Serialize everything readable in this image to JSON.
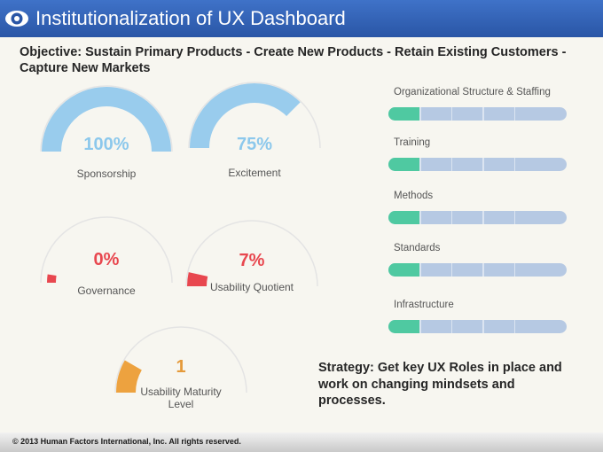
{
  "header": {
    "title": "Institutionalization of UX Dashboard",
    "logo_icon": "eye-icon"
  },
  "objective": "Objective: Sustain Primary Products - Create New Products - Retain Existing Customers - Capture New Markets",
  "strategy": "Strategy: Get key UX Roles in place and work on changing mindsets and processes.",
  "footer": {
    "copyright": "© 2013 Human Factors International, Inc. All rights reserved."
  },
  "colors": {
    "header": "#2f5fb3",
    "gauge_blue": "#99cced",
    "gauge_red": "#e8474f",
    "gauge_orange": "#eda23f",
    "gauge_track": "#e4e4e4",
    "bar_progress": "#4fc9a1",
    "bar_track": "#b6c9e3"
  },
  "chart_data": [
    {
      "type": "gauge",
      "gauges": [
        {
          "label": "Sponsorship",
          "value_text": "100%",
          "value": 100,
          "max": 100,
          "color": "#99cced"
        },
        {
          "label": "Excitement",
          "value_text": "75%",
          "value": 75,
          "max": 100,
          "color": "#99cced"
        },
        {
          "label": "Governance",
          "value_text": "0%",
          "value": 0,
          "max": 100,
          "color": "#e8474f"
        },
        {
          "label": "Usability Quotient",
          "value_text": "7%",
          "value": 7,
          "max": 100,
          "color": "#e8474f"
        },
        {
          "label": "Usability Maturity Level",
          "value_text": "1",
          "value": 1,
          "max": 6,
          "color": "#eda23f"
        }
      ]
    },
    {
      "type": "bar",
      "categories": [
        "Organizational Structure & Staffing",
        "Training",
        "Methods",
        "Standards",
        "Infrastructure"
      ],
      "segments_total": 5,
      "values": [
        1,
        1,
        1,
        1,
        1
      ]
    }
  ]
}
